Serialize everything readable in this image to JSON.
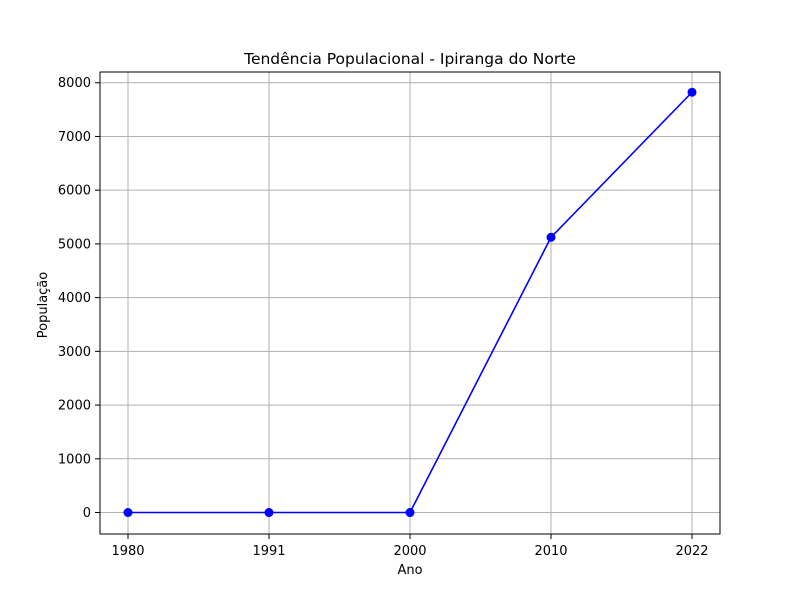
{
  "chart_data": {
    "type": "line",
    "title": "Tendência Populacional - Ipiranga do Norte",
    "xlabel": "Ano",
    "ylabel": "População",
    "categories": [
      "1980",
      "1991",
      "2000",
      "2010",
      "2022"
    ],
    "series": [
      {
        "values": [
          0,
          0,
          0,
          5123,
          7823
        ],
        "color": "#0000ff",
        "marker": "circle"
      }
    ],
    "ylim": [
      -400,
      8200
    ],
    "yticks": [
      0,
      1000,
      2000,
      3000,
      4000,
      5000,
      6000,
      7000,
      8000
    ],
    "grid": true,
    "grid_color": "#b0b0b0"
  }
}
